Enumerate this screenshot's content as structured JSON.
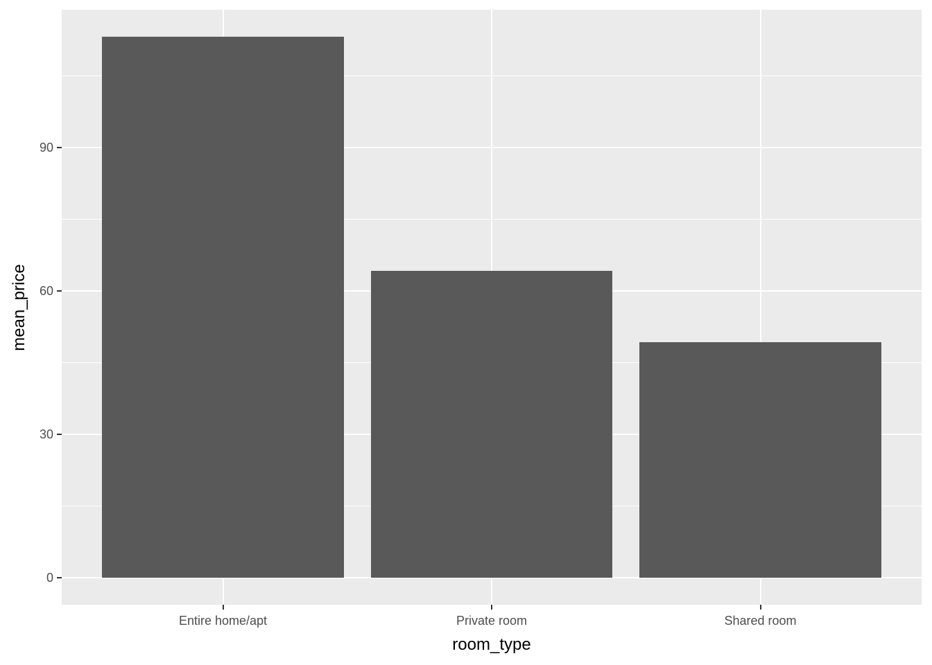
{
  "chart_data": {
    "type": "bar",
    "title": "",
    "xlabel": "room_type",
    "ylabel": "mean_price",
    "categories": [
      "Entire home/apt",
      "Private room",
      "Shared room"
    ],
    "values": [
      113.2,
      64.2,
      49.3
    ],
    "yticks": [
      0,
      30,
      60,
      90
    ],
    "minor_yticks": [
      15,
      45,
      75,
      105
    ],
    "ylim": [
      -5.7,
      118.9
    ],
    "grid": "major-and-minor, white on gray panel",
    "legend_position": "none",
    "bar_width_fraction": 0.9,
    "colors": {
      "bar_fill": "#595959",
      "panel_bg": "#EBEBEB",
      "gridline": "#FFFFFF",
      "tick_label": "#4D4D4D",
      "axis_title": "#000000",
      "tick_mark": "#333333",
      "figure_bg": "#FFFFFF"
    }
  }
}
